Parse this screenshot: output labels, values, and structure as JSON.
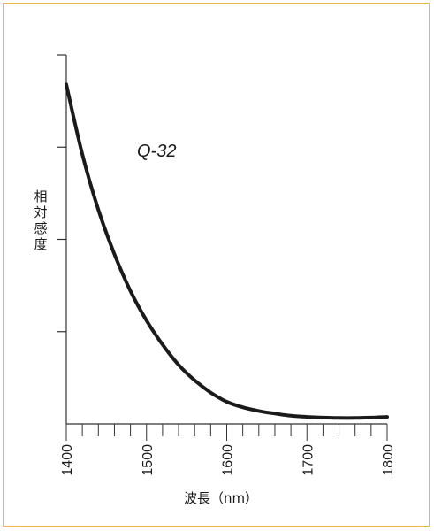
{
  "chart_data": {
    "type": "line",
    "title": "",
    "xlabel": "波長（nm）",
    "ylabel": "相対感度",
    "xlim": [
      1400,
      1800
    ],
    "ylim": [
      0,
      1.0
    ],
    "x_ticks": [
      1400,
      1500,
      1600,
      1700,
      1800
    ],
    "x_minor_step": 20,
    "y_ticks_count": 4,
    "y_tick_labels_shown": false,
    "grid": false,
    "annotation": "Q-32",
    "series": [
      {
        "name": "",
        "color": "#1a1a1a",
        "x": [
          1400,
          1420,
          1440,
          1460,
          1480,
          1500,
          1520,
          1540,
          1560,
          1580,
          1600,
          1620,
          1640,
          1660,
          1680,
          1700,
          1720,
          1740,
          1760,
          1780,
          1800
        ],
        "y": [
          0.92,
          0.73,
          0.58,
          0.46,
          0.36,
          0.28,
          0.215,
          0.16,
          0.118,
          0.085,
          0.06,
          0.045,
          0.035,
          0.028,
          0.022,
          0.019,
          0.017,
          0.016,
          0.016,
          0.017,
          0.019
        ]
      }
    ]
  }
}
